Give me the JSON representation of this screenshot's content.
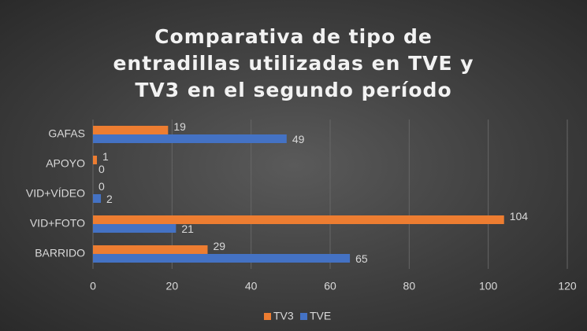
{
  "chart_data": {
    "type": "bar",
    "orientation": "horizontal",
    "title": "Comparativa de tipo de entradillas utilizadas en TVE y TV3 en el segundo período",
    "categories": [
      "GAFAS",
      "APOYO",
      "VID+VÍDEO",
      "VID+FOTO",
      "BARRIDO"
    ],
    "series": [
      {
        "name": "TV3",
        "color": "#ed7d31",
        "values": [
          19,
          1,
          0,
          104,
          29
        ]
      },
      {
        "name": "TVE",
        "color": "#4472c4",
        "values": [
          49,
          0,
          2,
          21,
          65
        ]
      }
    ],
    "xlim": [
      0,
      120
    ],
    "xticks": [
      0,
      20,
      40,
      60,
      80,
      100,
      120
    ],
    "grid": true,
    "legend": "bottom"
  }
}
